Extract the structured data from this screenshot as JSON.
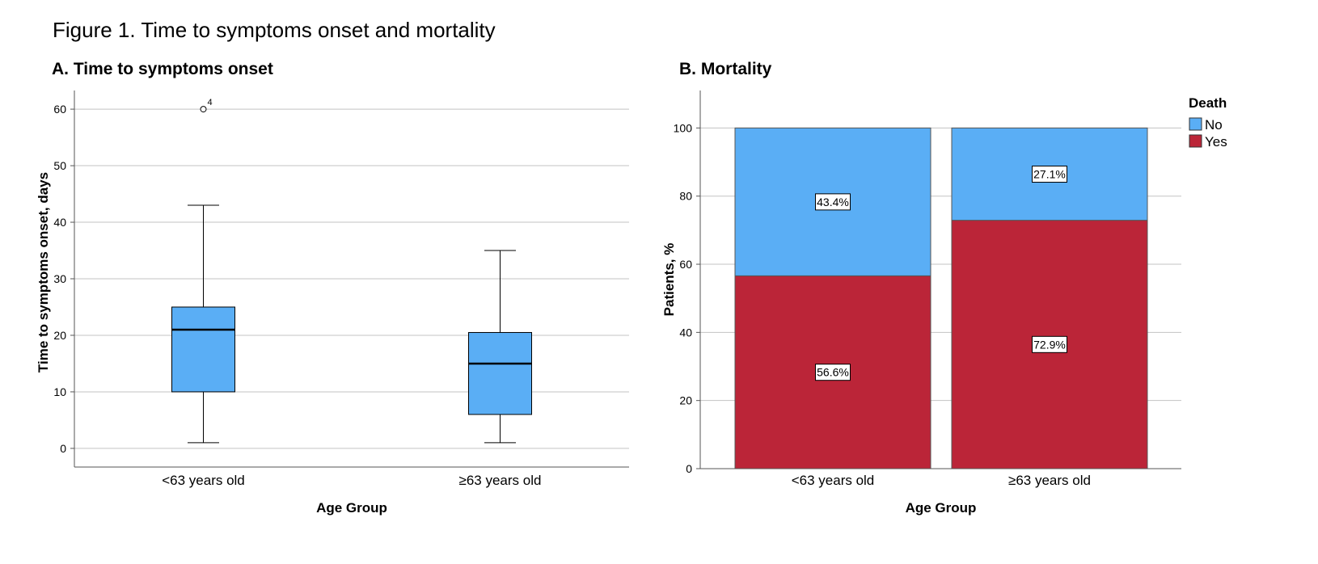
{
  "figure_title": "Figure 1. Time to symptoms onset and mortality",
  "chart_data": [
    {
      "type": "box",
      "title": "A. Time to symptoms onset",
      "xlabel": "Age Group",
      "ylabel": "Time to symptoms onset, days",
      "ylim": [
        -3.3,
        63.3
      ],
      "yticks": [
        0,
        10,
        20,
        30,
        40,
        50,
        60
      ],
      "grid": true,
      "categories": [
        "<63 years old",
        "≥63 years old"
      ],
      "boxes": [
        {
          "category": "<63 years old",
          "min": 1,
          "q1": 10,
          "median": 21,
          "q3": 25,
          "max": 43,
          "outliers": [
            {
              "value": 60,
              "label": "4"
            }
          ]
        },
        {
          "category": "≥63 years old",
          "min": 1,
          "q1": 6,
          "median": 15,
          "q3": 20.5,
          "max": 35,
          "outliers": []
        }
      ],
      "color": "#5aaef5"
    },
    {
      "type": "bar",
      "stacked": true,
      "title": "B. Mortality",
      "xlabel": "Age Group",
      "ylabel": "Patients, %",
      "ylim": [
        0,
        111
      ],
      "yticks": [
        0,
        20,
        40,
        60,
        80,
        100
      ],
      "grid": true,
      "categories": [
        "<63 years old",
        "≥63 years old"
      ],
      "series": [
        {
          "name": "Yes",
          "values": [
            56.6,
            72.9
          ],
          "labels": [
            "56.6%",
            "72.9%"
          ],
          "color": "#bb2538"
        },
        {
          "name": "No",
          "values": [
            43.4,
            27.1
          ],
          "labels": [
            "43.4%",
            "27.1%"
          ],
          "color": "#5aaef5"
        }
      ],
      "legend": {
        "title": "Death",
        "entries": [
          "No",
          "Yes"
        ],
        "placement": "top-right"
      }
    }
  ]
}
